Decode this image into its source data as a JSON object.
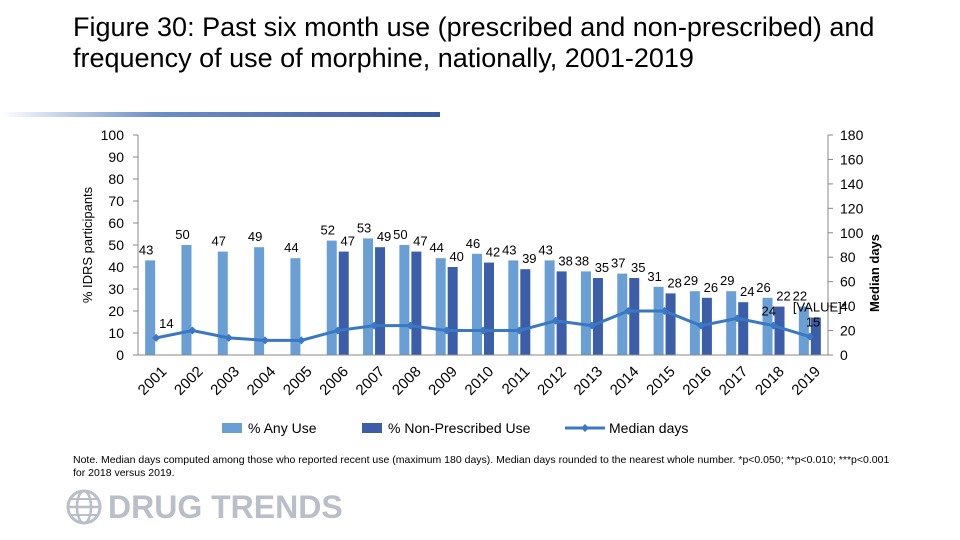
{
  "header": {
    "title": "Figure 30: Past six month use (prescribed and non-prescribed) and frequency of use of morphine, nationally, 2001-2019"
  },
  "note": {
    "text": "Note. Median days computed among those who reported recent use (maximum 180 days). Median days rounded to the nearest whole number. *p<0.050; **p<0.010; ***p<0.001 for 2018 versus 2019."
  },
  "logo": {
    "text": "DRUG TRENDS"
  },
  "colors": {
    "any_use": "#6a9fd6",
    "non_prescribed": "#3c5ea8",
    "median": "#3a78c4"
  },
  "chart_data": {
    "type": "bar",
    "categories": [
      "2001",
      "2002",
      "2003",
      "2004",
      "2005",
      "2006",
      "2007",
      "2008",
      "2009",
      "2010",
      "2011",
      "2012",
      "2013",
      "2014",
      "2015",
      "2016",
      "2017",
      "2018",
      "2019"
    ],
    "ylabel": "% IDRS participants",
    "y2label": "Median days",
    "ylim": [
      0,
      100
    ],
    "y2lim": [
      0,
      180
    ],
    "yticks": [
      0,
      10,
      20,
      30,
      40,
      50,
      60,
      70,
      80,
      90,
      100
    ],
    "y2ticks": [
      0,
      20,
      40,
      60,
      80,
      100,
      120,
      140,
      160,
      180
    ],
    "series": [
      {
        "name": "% Any Use",
        "type": "bar",
        "axis": "left",
        "values": [
          43,
          50,
          47,
          49,
          44,
          52,
          53,
          50,
          44,
          46,
          43,
          43,
          38,
          37,
          31,
          29,
          29,
          26,
          22
        ],
        "labels": [
          "43",
          "50",
          "47",
          "49",
          "44",
          "52",
          "53",
          "50",
          "44",
          "46",
          "43",
          "43",
          "38",
          "37",
          "31",
          "29",
          "29",
          "26",
          "22"
        ]
      },
      {
        "name": "% Non-Prescribed Use",
        "type": "bar",
        "axis": "left",
        "values": [
          null,
          null,
          null,
          null,
          null,
          47,
          49,
          47,
          40,
          42,
          39,
          38,
          35,
          35,
          28,
          26,
          24,
          22,
          17
        ],
        "labels": [
          "",
          "",
          "",
          "",
          "",
          "47",
          "49",
          "47",
          "40",
          "42",
          "39",
          "38",
          "35",
          "35",
          "28",
          "26",
          "24",
          "22",
          "[VALUE]*"
        ]
      },
      {
        "name": "Median days",
        "type": "line",
        "axis": "right",
        "values": [
          14,
          20,
          14,
          12,
          12,
          20,
          24,
          24,
          20,
          20,
          20,
          28,
          24,
          36,
          36,
          24,
          30,
          24,
          15
        ],
        "labels": [
          "14",
          "",
          "",
          "",
          "",
          "",
          "",
          "",
          "",
          "",
          "",
          "",
          "",
          "",
          "",
          "",
          "",
          "24",
          "15"
        ]
      }
    ],
    "legend_position": "bottom"
  }
}
